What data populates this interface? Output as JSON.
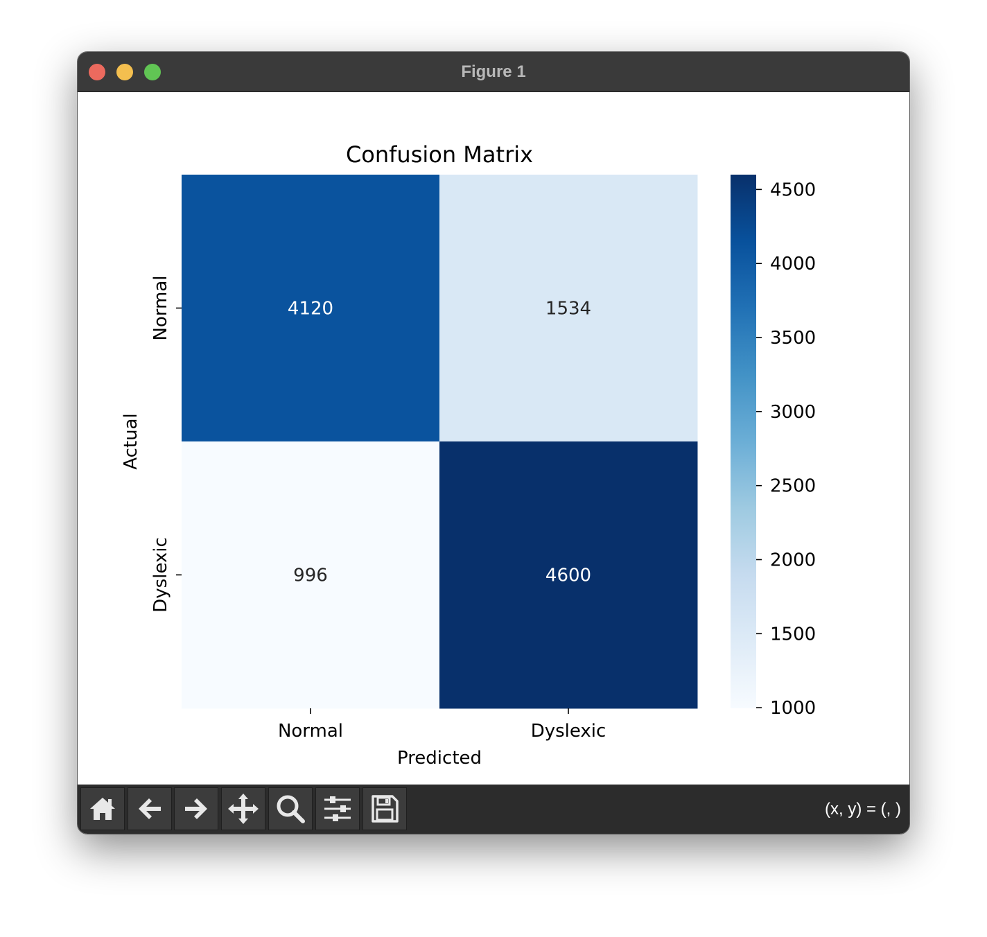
{
  "window": {
    "title": "Figure 1",
    "traffic_lights": [
      {
        "name": "close-button",
        "color": "#ec6a5e"
      },
      {
        "name": "minimize-button",
        "color": "#f4bf4f"
      },
      {
        "name": "zoom-button",
        "color": "#61c554"
      }
    ]
  },
  "toolbar": {
    "buttons": [
      {
        "name": "home-button",
        "icon": "home-icon"
      },
      {
        "name": "back-button",
        "icon": "arrow-left-icon"
      },
      {
        "name": "forward-button",
        "icon": "arrow-right-icon"
      },
      {
        "name": "pan-button",
        "icon": "move-icon"
      },
      {
        "name": "zoom-rect-button",
        "icon": "magnifier-icon"
      },
      {
        "name": "configure-subplots-button",
        "icon": "sliders-icon"
      },
      {
        "name": "save-button",
        "icon": "floppy-disk-icon"
      }
    ],
    "coords_text": "(x, y) = (, )"
  },
  "chart_data": {
    "type": "heatmap",
    "title": "Confusion Matrix",
    "xlabel": "Predicted",
    "ylabel": "Actual",
    "x_categories": [
      "Normal",
      "Dyslexic"
    ],
    "y_categories": [
      "Normal",
      "Dyslexic"
    ],
    "values": [
      [
        4120,
        1534
      ],
      [
        996,
        4600
      ]
    ],
    "colormap": "Blues",
    "colorbar": {
      "min": 996,
      "max": 4600,
      "ticks": [
        1000,
        1500,
        2000,
        2500,
        3000,
        3500,
        4000,
        4500
      ]
    },
    "grid": false
  }
}
